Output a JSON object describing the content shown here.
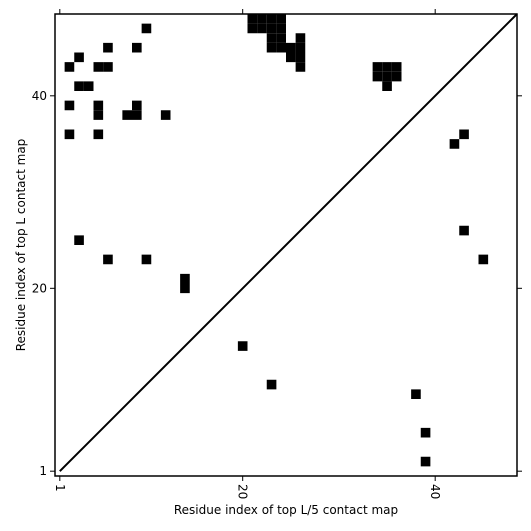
{
  "chart_data": {
    "type": "scatter",
    "marker": "square",
    "color": "#000000",
    "x_label": "Residue index of top L/5 contact map",
    "y_label": "Residue index of top L contact map",
    "xlim": [
      0.5,
      48.5
    ],
    "ylim": [
      0.5,
      48.5
    ],
    "xticks": [
      1,
      20,
      40
    ],
    "yticks": [
      1,
      20,
      40
    ],
    "diagonal": true,
    "x": [
      10,
      3,
      6,
      9,
      2,
      5,
      6,
      3,
      4,
      2,
      5,
      5,
      8,
      9,
      9,
      12,
      2,
      5,
      3,
      6,
      10,
      14,
      14,
      20,
      23,
      21,
      22,
      23,
      24,
      21,
      22,
      23,
      24,
      23,
      24,
      23,
      24,
      25,
      25,
      26,
      26,
      26,
      26,
      34,
      35,
      36,
      34,
      35,
      36,
      35,
      42,
      43,
      43,
      45,
      38,
      39,
      39
    ],
    "y": [
      47,
      44,
      45,
      45,
      43,
      43,
      43,
      41,
      41,
      39,
      39,
      38,
      38,
      38,
      39,
      38,
      36,
      36,
      25,
      23,
      23,
      21,
      20,
      14,
      10,
      48,
      48,
      48,
      48,
      47,
      47,
      47,
      47,
      46,
      46,
      45,
      45,
      45,
      44,
      46,
      45,
      44,
      43,
      43,
      43,
      43,
      42,
      42,
      42,
      41,
      35,
      36,
      26,
      23,
      9,
      5,
      2
    ]
  }
}
